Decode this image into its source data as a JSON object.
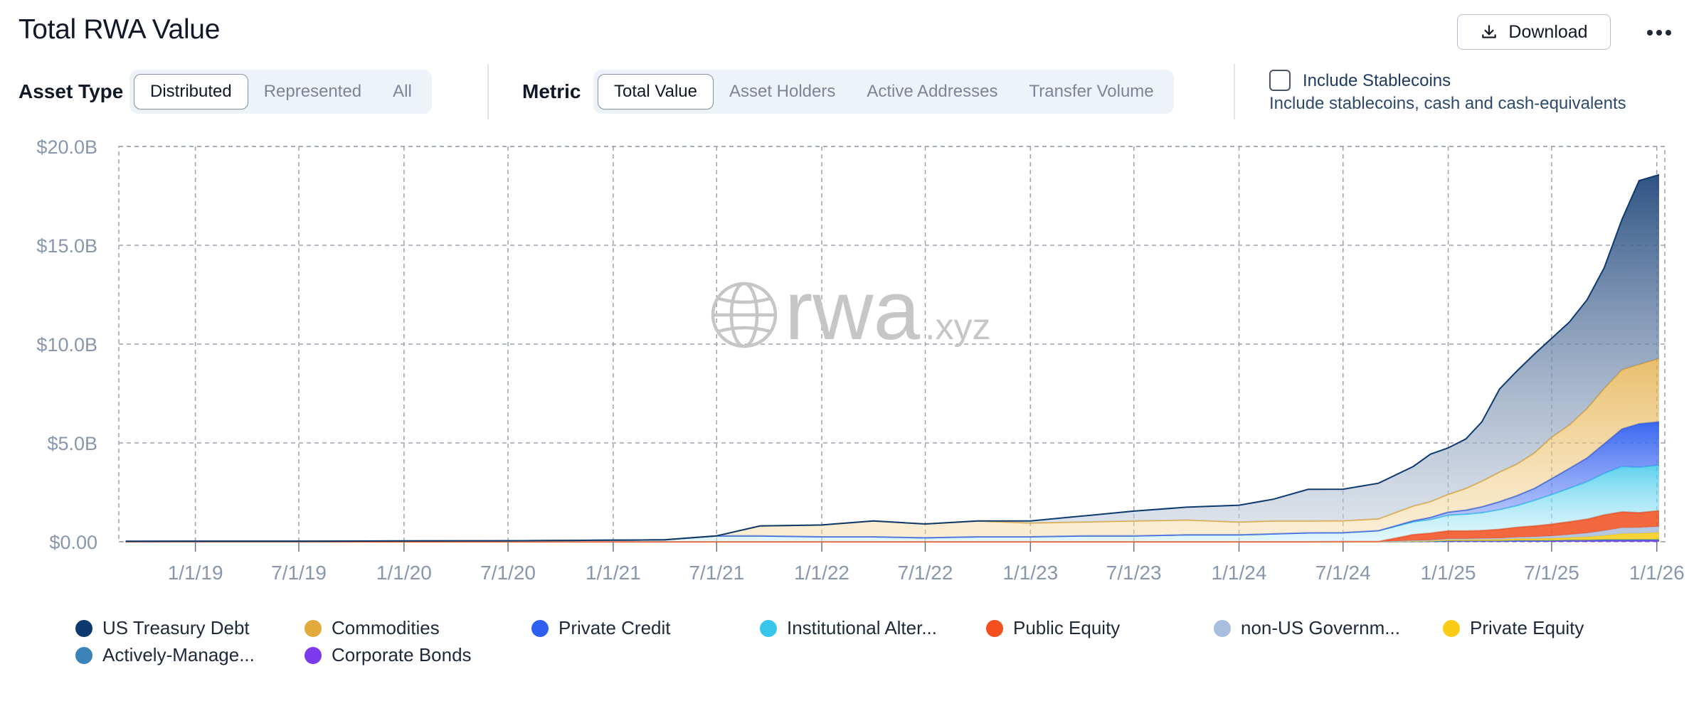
{
  "header": {
    "title": "Total RWA Value",
    "download_label": "Download"
  },
  "controls": {
    "asset_type_label": "Asset Type",
    "asset_type_options": [
      "Distributed",
      "Represented",
      "All"
    ],
    "asset_type_selected": "Distributed",
    "metric_label": "Metric",
    "metric_options": [
      "Total Value",
      "Asset Holders",
      "Active Addresses",
      "Transfer Volume"
    ],
    "metric_selected": "Total Value",
    "stablecoins_label": "Include Stablecoins",
    "stablecoins_desc": "Include stablecoins, cash and cash-equivalents",
    "stablecoins_checked": false
  },
  "watermark": {
    "text": "rwa",
    "suffix": ".xyz"
  },
  "chart_data": {
    "type": "area",
    "stacked": true,
    "grid": true,
    "y_tick_labels": [
      "$0.00",
      "$5.0B",
      "$10.0B",
      "$15.0B",
      "$20.0B"
    ],
    "ylim": [
      0,
      20
    ],
    "y_unit": "$B",
    "x_tick_labels": [
      "1/1/19",
      "7/1/19",
      "1/1/20",
      "7/1/20",
      "1/1/21",
      "7/1/21",
      "1/1/22",
      "7/1/22",
      "1/1/23",
      "7/1/23",
      "1/1/24",
      "7/1/24",
      "1/1/25",
      "7/1/25",
      "1/1/26"
    ],
    "xlim": [
      "2018-08-20",
      "2026-01-15"
    ],
    "x": [
      "2018-09-01",
      "2019-01-01",
      "2019-07-01",
      "2020-01-01",
      "2020-07-01",
      "2021-01-01",
      "2021-04-01",
      "2021-07-01",
      "2021-09-15",
      "2022-01-01",
      "2022-04-01",
      "2022-07-01",
      "2022-10-01",
      "2023-01-01",
      "2023-04-01",
      "2023-07-01",
      "2023-10-01",
      "2024-01-01",
      "2024-03-01",
      "2024-05-01",
      "2024-07-01",
      "2024-09-01",
      "2024-11-01",
      "2024-12-01",
      "2025-01-01",
      "2025-02-01",
      "2025-03-01",
      "2025-04-01",
      "2025-05-01",
      "2025-06-01",
      "2025-07-01",
      "2025-08-01",
      "2025-09-01",
      "2025-10-01",
      "2025-11-01",
      "2025-12-01",
      "2026-01-05"
    ],
    "series": [
      {
        "name": "Corporate Bonds",
        "color": "#7c3aed",
        "values": [
          0,
          0,
          0,
          0,
          0,
          0,
          0,
          0,
          0,
          0,
          0,
          0,
          0,
          0,
          0,
          0,
          0,
          0,
          0,
          0,
          0,
          0,
          0.02,
          0.02,
          0.03,
          0.03,
          0.03,
          0.03,
          0.04,
          0.04,
          0.04,
          0.05,
          0.05,
          0.06,
          0.06,
          0.06,
          0.06
        ]
      },
      {
        "name": "Actively-Manage...",
        "color": "#3b82b8",
        "values": [
          0,
          0,
          0,
          0,
          0,
          0,
          0,
          0,
          0,
          0,
          0,
          0,
          0,
          0,
          0,
          0,
          0,
          0,
          0,
          0,
          0,
          0,
          0,
          0,
          0.02,
          0.02,
          0.02,
          0.02,
          0.03,
          0.03,
          0.03,
          0.04,
          0.04,
          0.05,
          0.05,
          0.06,
          0.06
        ]
      },
      {
        "name": "Private Equity",
        "color": "#facc15",
        "values": [
          0,
          0,
          0,
          0,
          0,
          0,
          0,
          0,
          0,
          0,
          0,
          0,
          0,
          0,
          0,
          0,
          0,
          0,
          0,
          0,
          0,
          0,
          0.02,
          0.03,
          0.05,
          0.05,
          0.06,
          0.06,
          0.08,
          0.08,
          0.1,
          0.12,
          0.15,
          0.2,
          0.3,
          0.3,
          0.35
        ]
      },
      {
        "name": "non-US Governm...",
        "color": "#a9bedc",
        "values": [
          0,
          0,
          0,
          0,
          0,
          0,
          0,
          0,
          0,
          0,
          0,
          0,
          0,
          0,
          0,
          0,
          0,
          0,
          0,
          0,
          0.01,
          0.01,
          0.02,
          0.03,
          0.05,
          0.05,
          0.06,
          0.07,
          0.08,
          0.1,
          0.12,
          0.15,
          0.2,
          0.25,
          0.3,
          0.3,
          0.3
        ]
      },
      {
        "name": "Public Equity",
        "color": "#f24e1e",
        "values": [
          0,
          0,
          0,
          0,
          0,
          0,
          0,
          0,
          0,
          0,
          0,
          0,
          0,
          0,
          0,
          0,
          0,
          0,
          0,
          0,
          0,
          0,
          0.3,
          0.35,
          0.4,
          0.4,
          0.4,
          0.45,
          0.5,
          0.55,
          0.6,
          0.65,
          0.7,
          0.8,
          0.8,
          0.75,
          0.8
        ]
      },
      {
        "name": "Institutional Alter...",
        "color": "#38c7ea",
        "values": [
          0.02,
          0.03,
          0.03,
          0.04,
          0.05,
          0.08,
          0.1,
          0.3,
          0.3,
          0.25,
          0.25,
          0.2,
          0.25,
          0.25,
          0.3,
          0.3,
          0.35,
          0.35,
          0.4,
          0.45,
          0.45,
          0.55,
          0.65,
          0.7,
          0.8,
          0.85,
          0.9,
          1.0,
          1.1,
          1.3,
          1.5,
          1.7,
          1.9,
          2.1,
          2.3,
          2.3,
          2.3
        ]
      },
      {
        "name": "Private Credit",
        "color": "#2f5ff0",
        "values": [
          0,
          0,
          0,
          0,
          0,
          0,
          0,
          0,
          0,
          0,
          0,
          0,
          0,
          0,
          0,
          0,
          0,
          0,
          0,
          0,
          0,
          0,
          0.05,
          0.1,
          0.15,
          0.2,
          0.3,
          0.4,
          0.5,
          0.6,
          0.8,
          1.0,
          1.2,
          1.5,
          1.9,
          2.2,
          2.2
        ]
      },
      {
        "name": "Commodities",
        "color": "#e2a93b",
        "values": [
          0,
          0,
          0,
          0,
          0,
          0,
          0,
          0,
          0.5,
          0.6,
          0.8,
          0.7,
          0.8,
          0.7,
          0.7,
          0.75,
          0.75,
          0.65,
          0.65,
          0.6,
          0.6,
          0.6,
          0.75,
          0.8,
          0.9,
          1.1,
          1.3,
          1.5,
          1.6,
          1.8,
          2.1,
          2.2,
          2.5,
          2.8,
          3.0,
          3.0,
          3.2
        ]
      },
      {
        "name": "US Treasury Debt",
        "color": "#0d3a6e",
        "values": [
          0,
          0,
          0,
          0,
          0,
          0,
          0,
          0,
          0,
          0,
          0,
          0,
          0,
          0.1,
          0.3,
          0.5,
          0.65,
          0.85,
          1.1,
          1.6,
          1.6,
          1.8,
          2.0,
          2.4,
          2.35,
          2.5,
          3.0,
          4.2,
          4.7,
          5.0,
          5.0,
          5.2,
          5.5,
          6.1,
          7.6,
          9.3,
          9.3
        ]
      }
    ],
    "legend_placement": "bottom"
  }
}
